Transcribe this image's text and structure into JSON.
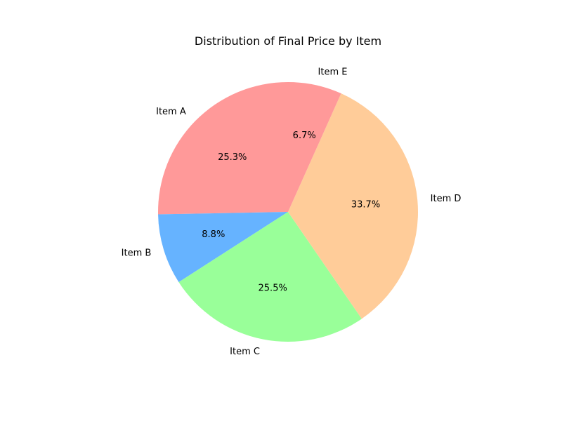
{
  "chart_data": {
    "type": "pie",
    "title": "Distribution of Final Price by Item",
    "start_angle_deg": 90,
    "direction": "counterclockwise",
    "slices": [
      {
        "label": "Item A",
        "value": 25.3,
        "percent_label": "25.3%",
        "color": "#ff9999"
      },
      {
        "label": "Item B",
        "value": 8.8,
        "percent_label": "8.8%",
        "color": "#66b3ff"
      },
      {
        "label": "Item C",
        "value": 25.5,
        "percent_label": "25.5%",
        "color": "#99ff99"
      },
      {
        "label": "Item D",
        "value": 33.7,
        "percent_label": "33.7%",
        "color": "#ffcc99"
      },
      {
        "label": "Item E",
        "value": 6.7,
        "percent_label": "6.7%",
        "color": "#ff9999"
      }
    ]
  }
}
